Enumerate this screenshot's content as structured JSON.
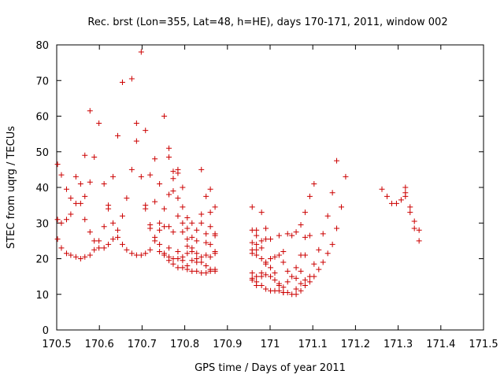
{
  "chart_data": {
    "type": "scatter",
    "title": "Rec. brst (Lon=355, Lat=48, h=HE), days 170-171, 2011, window 002",
    "xlabel": "GPS time / Days of year 2011",
    "ylabel": "STEC from uqrg / TECUs",
    "xlim": [
      170.5,
      171.5
    ],
    "ylim": [
      0,
      80
    ],
    "xticks": [
      170.5,
      170.6,
      170.7,
      170.8,
      170.9,
      171.0,
      171.1,
      171.2,
      171.3,
      171.4,
      171.5
    ],
    "xtick_labels": [
      "170.5",
      "170.6",
      "170.7",
      "170.8",
      "170.9",
      "171",
      "171.1",
      "171.2",
      "171.3",
      "171.4",
      "171.5"
    ],
    "yticks": [
      0,
      10,
      20,
      30,
      40,
      50,
      60,
      70,
      80
    ],
    "ytick_labels": [
      "0",
      "10",
      "20",
      "30",
      "40",
      "50",
      "60",
      "70",
      "80"
    ],
    "grid": false,
    "marker": "plus",
    "color": "#cc0000",
    "points": [
      [
        170.502,
        46.5
      ],
      [
        170.502,
        31
      ],
      [
        170.502,
        25.5
      ],
      [
        170.511,
        43.5
      ],
      [
        170.511,
        30
      ],
      [
        170.511,
        23
      ],
      [
        170.523,
        39.5
      ],
      [
        170.523,
        31
      ],
      [
        170.523,
        21.5
      ],
      [
        170.533,
        37
      ],
      [
        170.533,
        32.5
      ],
      [
        170.533,
        21
      ],
      [
        170.545,
        43
      ],
      [
        170.545,
        35.5
      ],
      [
        170.545,
        20.5
      ],
      [
        170.556,
        41
      ],
      [
        170.556,
        35.5
      ],
      [
        170.556,
        20
      ],
      [
        170.566,
        49
      ],
      [
        170.566,
        37.5
      ],
      [
        170.566,
        31
      ],
      [
        170.566,
        20.5
      ],
      [
        170.578,
        61.5
      ],
      [
        170.578,
        41.5
      ],
      [
        170.578,
        27.5
      ],
      [
        170.578,
        21
      ],
      [
        170.588,
        48.5
      ],
      [
        170.588,
        25
      ],
      [
        170.588,
        22.5
      ],
      [
        170.599,
        58
      ],
      [
        170.599,
        25
      ],
      [
        170.599,
        23
      ],
      [
        170.611,
        41
      ],
      [
        170.611,
        29
      ],
      [
        170.611,
        23
      ],
      [
        170.621,
        35
      ],
      [
        170.621,
        34
      ],
      [
        170.621,
        24
      ],
      [
        170.632,
        43
      ],
      [
        170.632,
        30
      ],
      [
        170.632,
        25.5
      ],
      [
        170.643,
        54.5
      ],
      [
        170.643,
        28
      ],
      [
        170.643,
        26
      ],
      [
        170.654,
        69.5
      ],
      [
        170.654,
        32
      ],
      [
        170.654,
        24
      ],
      [
        170.664,
        37
      ],
      [
        170.664,
        22.5
      ],
      [
        170.676,
        70.5
      ],
      [
        170.676,
        45
      ],
      [
        170.676,
        21.5
      ],
      [
        170.687,
        58
      ],
      [
        170.687,
        53
      ],
      [
        170.687,
        21
      ],
      [
        170.698,
        78
      ],
      [
        170.698,
        43
      ],
      [
        170.698,
        21
      ],
      [
        170.708,
        56
      ],
      [
        170.708,
        35
      ],
      [
        170.708,
        34
      ],
      [
        170.708,
        21.5
      ],
      [
        170.719,
        43.5
      ],
      [
        170.719,
        29.5
      ],
      [
        170.719,
        28.5
      ],
      [
        170.719,
        22.5
      ],
      [
        170.73,
        48
      ],
      [
        170.73,
        36
      ],
      [
        170.73,
        26
      ],
      [
        170.73,
        25
      ],
      [
        170.741,
        41
      ],
      [
        170.741,
        30
      ],
      [
        170.741,
        28
      ],
      [
        170.741,
        24
      ],
      [
        170.741,
        22
      ],
      [
        170.752,
        60
      ],
      [
        170.752,
        34
      ],
      [
        170.752,
        29
      ],
      [
        170.752,
        21.5
      ],
      [
        170.752,
        21
      ],
      [
        170.763,
        51
      ],
      [
        170.763,
        48.5
      ],
      [
        170.763,
        38
      ],
      [
        170.763,
        29
      ],
      [
        170.763,
        23
      ],
      [
        170.763,
        20.5
      ],
      [
        170.763,
        19.5
      ],
      [
        170.773,
        44.5
      ],
      [
        170.773,
        42.5
      ],
      [
        170.773,
        39
      ],
      [
        170.773,
        27.5
      ],
      [
        170.773,
        20
      ],
      [
        170.773,
        18.5
      ],
      [
        170.784,
        45
      ],
      [
        170.784,
        44
      ],
      [
        170.784,
        37
      ],
      [
        170.784,
        32
      ],
      [
        170.784,
        22
      ],
      [
        170.784,
        20
      ],
      [
        170.784,
        17.5
      ],
      [
        170.795,
        40
      ],
      [
        170.795,
        34.5
      ],
      [
        170.795,
        30
      ],
      [
        170.795,
        27.5
      ],
      [
        170.795,
        20.5
      ],
      [
        170.795,
        19.5
      ],
      [
        170.795,
        17.5
      ],
      [
        170.806,
        31.5
      ],
      [
        170.806,
        28.5
      ],
      [
        170.806,
        25.5
      ],
      [
        170.806,
        23.5
      ],
      [
        170.806,
        21.5
      ],
      [
        170.806,
        18
      ],
      [
        170.806,
        17
      ],
      [
        170.817,
        30
      ],
      [
        170.817,
        26
      ],
      [
        170.817,
        23
      ],
      [
        170.817,
        22
      ],
      [
        170.817,
        19.5
      ],
      [
        170.817,
        16.5
      ],
      [
        170.828,
        28
      ],
      [
        170.828,
        25
      ],
      [
        170.828,
        21.5
      ],
      [
        170.828,
        20
      ],
      [
        170.828,
        19
      ],
      [
        170.828,
        16.5
      ],
      [
        170.839,
        45
      ],
      [
        170.839,
        32.5
      ],
      [
        170.839,
        30
      ],
      [
        170.839,
        20.5
      ],
      [
        170.839,
        19
      ],
      [
        170.839,
        16
      ],
      [
        170.85,
        37.5
      ],
      [
        170.85,
        27
      ],
      [
        170.85,
        24.5
      ],
      [
        170.85,
        21
      ],
      [
        170.85,
        18
      ],
      [
        170.85,
        16
      ],
      [
        170.86,
        39.5
      ],
      [
        170.86,
        33
      ],
      [
        170.86,
        29
      ],
      [
        170.86,
        24
      ],
      [
        170.86,
        20.5
      ],
      [
        170.86,
        17
      ],
      [
        170.86,
        16.5
      ],
      [
        170.871,
        34.5
      ],
      [
        170.871,
        27
      ],
      [
        170.871,
        26.5
      ],
      [
        170.871,
        22
      ],
      [
        170.871,
        21.5
      ],
      [
        170.871,
        17
      ],
      [
        170.871,
        16.5
      ],
      [
        170.958,
        34.5
      ],
      [
        170.958,
        28
      ],
      [
        170.958,
        24.5
      ],
      [
        170.958,
        22.5
      ],
      [
        170.958,
        21.5
      ],
      [
        170.958,
        16
      ],
      [
        170.958,
        14.5
      ],
      [
        170.958,
        14
      ],
      [
        170.968,
        28
      ],
      [
        170.968,
        26.5
      ],
      [
        170.968,
        24
      ],
      [
        170.968,
        22.5
      ],
      [
        170.968,
        21
      ],
      [
        170.968,
        15
      ],
      [
        170.968,
        13.5
      ],
      [
        170.968,
        12.5
      ],
      [
        170.98,
        33
      ],
      [
        170.98,
        25
      ],
      [
        170.98,
        23
      ],
      [
        170.98,
        20
      ],
      [
        170.98,
        16
      ],
      [
        170.98,
        15
      ],
      [
        170.98,
        12.5
      ],
      [
        170.99,
        28.5
      ],
      [
        170.99,
        25.5
      ],
      [
        170.99,
        19
      ],
      [
        170.99,
        18.5
      ],
      [
        170.99,
        15.5
      ],
      [
        170.99,
        11.5
      ],
      [
        171.001,
        25.5
      ],
      [
        171.001,
        20
      ],
      [
        171.001,
        17.5
      ],
      [
        171.001,
        15
      ],
      [
        171.001,
        11
      ],
      [
        171.011,
        20.5
      ],
      [
        171.011,
        16
      ],
      [
        171.011,
        14
      ],
      [
        171.011,
        11
      ],
      [
        171.021,
        26.5
      ],
      [
        171.021,
        21
      ],
      [
        171.021,
        13
      ],
      [
        171.021,
        12.5
      ],
      [
        171.021,
        11
      ],
      [
        171.031,
        22
      ],
      [
        171.031,
        19
      ],
      [
        171.031,
        12
      ],
      [
        171.031,
        10.5
      ],
      [
        171.031,
        10.5
      ],
      [
        171.041,
        27
      ],
      [
        171.041,
        16.5
      ],
      [
        171.041,
        13.5
      ],
      [
        171.041,
        10.5
      ],
      [
        171.051,
        26.5
      ],
      [
        171.051,
        15
      ],
      [
        171.051,
        10
      ],
      [
        171.061,
        27.5
      ],
      [
        171.061,
        17.5
      ],
      [
        171.061,
        14.5
      ],
      [
        171.061,
        11.5
      ],
      [
        171.061,
        10
      ],
      [
        171.072,
        29.5
      ],
      [
        171.072,
        21
      ],
      [
        171.072,
        16.5
      ],
      [
        171.072,
        13
      ],
      [
        171.072,
        11
      ],
      [
        171.082,
        33
      ],
      [
        171.082,
        26
      ],
      [
        171.082,
        21
      ],
      [
        171.082,
        14
      ],
      [
        171.082,
        12.5
      ],
      [
        171.093,
        37.5
      ],
      [
        171.093,
        26.5
      ],
      [
        171.093,
        15
      ],
      [
        171.093,
        13.5
      ],
      [
        171.103,
        41
      ],
      [
        171.103,
        18.5
      ],
      [
        171.103,
        15
      ],
      [
        171.114,
        22.5
      ],
      [
        171.114,
        17
      ],
      [
        171.124,
        27
      ],
      [
        171.124,
        19
      ],
      [
        171.135,
        32
      ],
      [
        171.135,
        21.5
      ],
      [
        171.146,
        38.5
      ],
      [
        171.146,
        24
      ],
      [
        171.156,
        47.5
      ],
      [
        171.156,
        28.5
      ],
      [
        171.167,
        34.5
      ],
      [
        171.177,
        43
      ],
      [
        171.262,
        39.5
      ],
      [
        171.274,
        37.5
      ],
      [
        171.285,
        35.5
      ],
      [
        171.296,
        35.5
      ],
      [
        171.307,
        36.5
      ],
      [
        171.317,
        40
      ],
      [
        171.317,
        38.5
      ],
      [
        171.317,
        37.5
      ],
      [
        171.328,
        34.5
      ],
      [
        171.328,
        33
      ],
      [
        171.338,
        30.5
      ],
      [
        171.338,
        28.5
      ],
      [
        171.349,
        28
      ],
      [
        171.349,
        25
      ]
    ]
  }
}
